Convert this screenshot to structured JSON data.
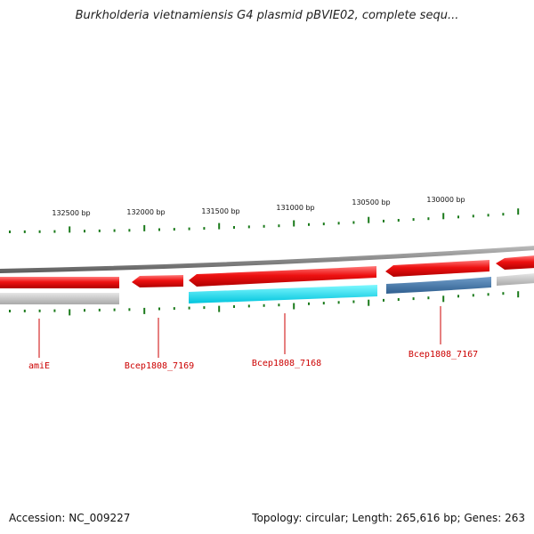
{
  "title": "Burkholderia vietnamiensis G4 plasmid pBVIE02, complete sequ...",
  "footer": {
    "accession": "Accession: NC_009227",
    "summary": "Topology: circular; Length: 265,616 bp; Genes: 263"
  },
  "colors": {
    "forward_cds": "#ee1111",
    "backbone": "#888888",
    "ticks": "#1a7a1a",
    "label": "#cc0000",
    "cog_cyan": "#00eeff",
    "cog_steel": "#4477aa",
    "cog_gray": "#bbbbbb"
  },
  "scale": {
    "unit": "bp",
    "labels": [
      "132500 bp",
      "132000 bp",
      "131500 bp",
      "131000 bp",
      "130500 bp",
      "130000 bp"
    ]
  },
  "genes": [
    {
      "name": "amiE"
    },
    {
      "name": "Bcep1808_7169"
    },
    {
      "name": "Bcep1808_7168"
    },
    {
      "name": "Bcep1808_7167"
    }
  ]
}
